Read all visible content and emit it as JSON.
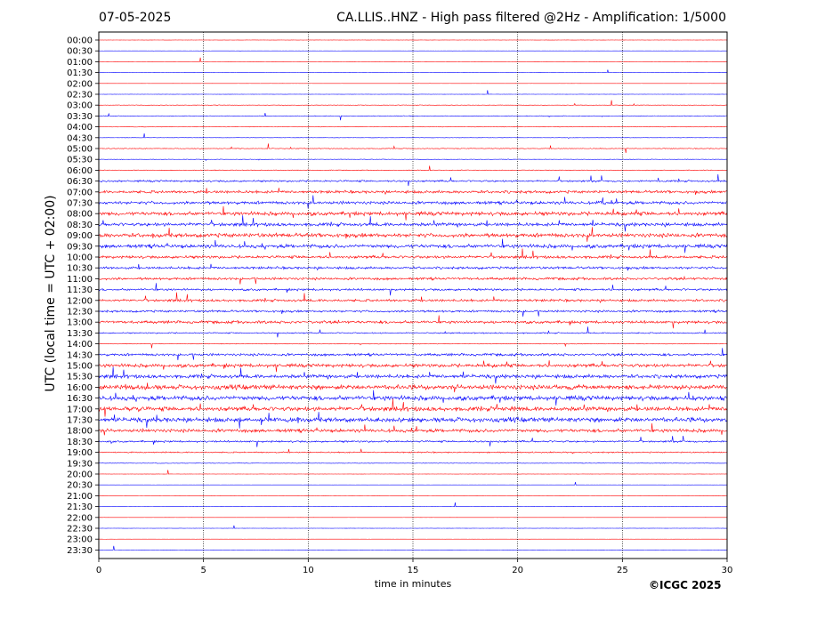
{
  "header": {
    "date": "07-05-2025",
    "title": "CA.LLIS..HNZ - High pass filtered @2Hz - Amplification: 1/5000"
  },
  "footer": {
    "copyright": "©ICGC 2025"
  },
  "chart_data": {
    "type": "line",
    "title": "CA.LLIS..HNZ - High pass filtered @2Hz - Amplification: 1/5000",
    "subtitle": "07-05-2025",
    "xlabel": "time in minutes",
    "ylabel": "UTC (local time = UTC + 02:00)",
    "xlim": [
      0,
      30
    ],
    "x_ticks": [
      0,
      5,
      10,
      15,
      20,
      25,
      30
    ],
    "x_tick_labels": [
      "0",
      "5",
      "10",
      "15",
      "20",
      "25",
      "30"
    ],
    "y_tick_labels": [
      "00:00",
      "00:30",
      "01:00",
      "01:30",
      "02:00",
      "02:30",
      "03:00",
      "03:30",
      "04:00",
      "04:30",
      "05:00",
      "05:30",
      "06:00",
      "06:30",
      "07:00",
      "07:30",
      "08:00",
      "08:30",
      "09:00",
      "09:30",
      "10:00",
      "10:30",
      "11:00",
      "11:30",
      "12:00",
      "12:30",
      "13:00",
      "13:30",
      "14:00",
      "14:30",
      "15:00",
      "15:30",
      "16:00",
      "16:30",
      "17:00",
      "17:30",
      "18:00",
      "18:30",
      "19:00",
      "19:30",
      "20:00",
      "20:30",
      "21:00",
      "21:30",
      "22:00",
      "22:30",
      "23:00",
      "23:30"
    ],
    "vertical_gridlines": [
      5,
      10,
      15,
      20,
      25
    ],
    "trace_colors": [
      "#ff0000",
      "#0000ff"
    ],
    "trace_activity": [
      0.02,
      0.02,
      0.02,
      0.02,
      0.02,
      0.02,
      0.08,
      0.1,
      0.08,
      0.05,
      0.12,
      0.08,
      0.12,
      0.3,
      0.45,
      0.5,
      0.6,
      0.55,
      0.65,
      0.6,
      0.45,
      0.4,
      0.4,
      0.35,
      0.4,
      0.35,
      0.45,
      0.2,
      0.1,
      0.4,
      0.55,
      0.6,
      0.75,
      0.75,
      0.7,
      0.75,
      0.55,
      0.3,
      0.2,
      0.08,
      0.02,
      0.02,
      0.02,
      0.02,
      0.02,
      0.02,
      0.02,
      0.02
    ],
    "grid": false
  }
}
